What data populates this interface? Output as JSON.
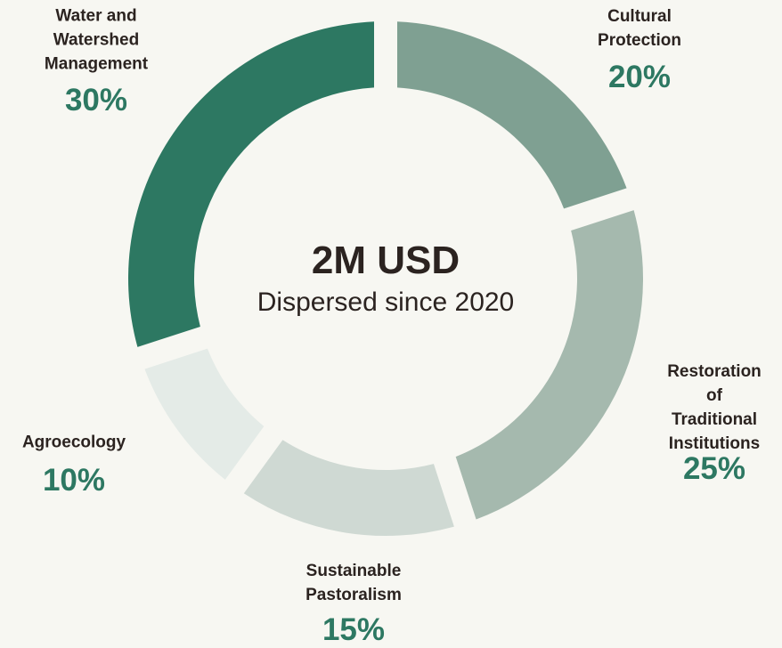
{
  "chart_data": {
    "type": "donut",
    "title": "2M USD",
    "subtitle": "Dispersed since 2020",
    "categories": [
      "Cultural\nProtection",
      "Restoration\nof Traditional\nInstitutions",
      "Sustainable\nPastoralism",
      "Agroecology",
      "Water and\nWatershed\nManagement"
    ],
    "values": [
      20,
      25,
      15,
      10,
      30
    ],
    "value_labels": [
      "20%",
      "25%",
      "15%",
      "10%",
      "30%"
    ],
    "colors": [
      "#7fa092",
      "#a5b9ae",
      "#cfd9d3",
      "#e4ebe7",
      "#2d7862"
    ]
  }
}
